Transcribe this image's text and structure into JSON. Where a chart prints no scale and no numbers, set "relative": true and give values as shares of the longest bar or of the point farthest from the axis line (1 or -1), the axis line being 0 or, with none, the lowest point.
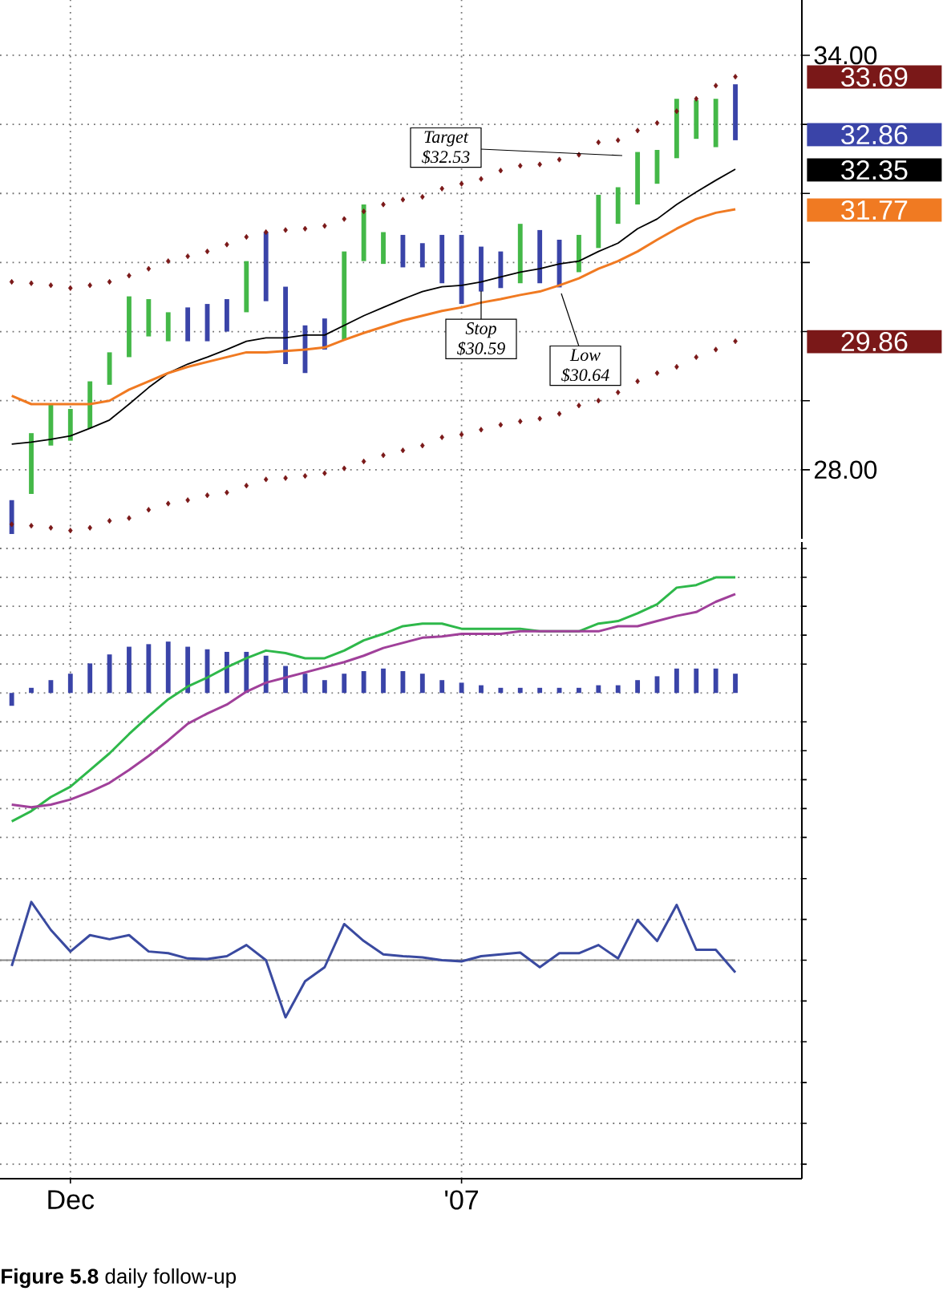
{
  "chart_data": [
    {
      "type": "bar",
      "categories": [
        null,
        null,
        null,
        null,
        null,
        null,
        null,
        null,
        null,
        null,
        null,
        null,
        null,
        null,
        null,
        null,
        null,
        null,
        null,
        null,
        null,
        null,
        null,
        null,
        null,
        null,
        null,
        null,
        null,
        null,
        null,
        null,
        null,
        null,
        null,
        null,
        null,
        null
      ],
      "ylim": [
        27.0,
        34.8
      ],
      "yticks": [
        {
          "value": 28,
          "label": "28.00"
        },
        {
          "value": 29,
          "label": null
        },
        {
          "value": 30,
          "label": null
        },
        {
          "value": 31,
          "label": null
        },
        {
          "value": 32,
          "label": null
        },
        {
          "value": 33,
          "label": null
        },
        {
          "value": 34,
          "label": "34.00"
        }
      ],
      "grid": true,
      "tick_labels": "y",
      "series": [
        {
          "type": "bar",
          "base": [
            27.07,
            27.65,
            28.35,
            28.42,
            28.6,
            29.23,
            29.63,
            29.93,
            29.86,
            29.86,
            29.86,
            30.0,
            30.28,
            30.44,
            29.53,
            29.4,
            29.74,
            29.88,
            31.02,
            30.98,
            30.93,
            30.93,
            30.7,
            30.4,
            30.58,
            30.63,
            30.7,
            30.7,
            30.64,
            30.86,
            31.21,
            31.56,
            31.84,
            32.14,
            32.51,
            32.79,
            32.67,
            32.77
          ],
          "values": [
            0.49,
            0.88,
            0.6,
            0.46,
            0.68,
            0.47,
            0.88,
            0.54,
            0.42,
            0.49,
            0.54,
            0.47,
            0.74,
            1.0,
            1.12,
            0.69,
            0.45,
            1.28,
            0.82,
            0.46,
            0.47,
            0.35,
            0.7,
            1.0,
            0.65,
            0.53,
            0.86,
            0.77,
            0.69,
            0.54,
            0.77,
            0.53,
            0.76,
            0.49,
            0.86,
            0.56,
            0.7,
            0.81
          ],
          "colors": [
            "#3a44a8",
            "#44b848",
            "#44b848",
            "#44b848",
            "#44b848",
            "#44b848",
            "#44b848",
            "#44b848",
            "#44b848",
            "#3a44a8",
            "#3a44a8",
            "#3a44a8",
            "#44b848",
            "#3a44a8",
            "#3a44a8",
            "#3a44a8",
            "#3a44a8",
            "#44b848",
            "#44b848",
            "#44b848",
            "#3a44a8",
            "#3a44a8",
            "#3a44a8",
            "#3a44a8",
            "#3a44a8",
            "#3a44a8",
            "#44b848",
            "#3a44a8",
            "#3a44a8",
            "#44b848",
            "#44b848",
            "#44b848",
            "#44b848",
            "#44b848",
            "#44b848",
            "#44b848",
            "#44b848",
            "#3a44a8"
          ]
        },
        {
          "type": "line",
          "color": "#000000",
          "values": [
            28.37,
            28.4,
            28.44,
            28.49,
            28.6,
            28.72,
            28.95,
            29.19,
            29.4,
            29.53,
            29.63,
            29.74,
            29.86,
            29.91,
            29.91,
            29.95,
            29.95,
            30.09,
            30.23,
            30.35,
            30.47,
            30.58,
            30.65,
            30.67,
            30.72,
            30.79,
            30.86,
            30.91,
            30.98,
            31.02,
            31.16,
            31.28,
            31.49,
            31.63,
            31.84,
            32.02,
            32.19,
            32.35
          ]
        },
        {
          "type": "line",
          "color": "#f07a22",
          "values": [
            29.07,
            28.95,
            28.95,
            28.95,
            28.95,
            29.0,
            29.16,
            29.28,
            29.4,
            29.49,
            29.56,
            29.63,
            29.7,
            29.7,
            29.72,
            29.74,
            29.77,
            29.88,
            29.98,
            30.07,
            30.16,
            30.23,
            30.3,
            30.35,
            30.42,
            30.47,
            30.53,
            30.58,
            30.67,
            30.77,
            30.91,
            31.02,
            31.16,
            31.33,
            31.49,
            31.63,
            31.72,
            31.77
          ]
        },
        {
          "type": "scatter",
          "marker": "diamond",
          "color": "#7a1818",
          "values": [
            30.72,
            30.7,
            30.67,
            30.63,
            30.67,
            30.72,
            30.81,
            30.91,
            31.02,
            31.09,
            31.16,
            31.26,
            31.37,
            31.44,
            31.47,
            31.49,
            31.53,
            31.63,
            31.74,
            31.84,
            31.91,
            31.95,
            32.07,
            32.14,
            32.21,
            32.33,
            32.4,
            32.42,
            32.49,
            32.56,
            32.74,
            32.77,
            32.91,
            33.02,
            33.19,
            33.37,
            33.56,
            33.69
          ]
        },
        {
          "type": "scatter",
          "marker": "diamond",
          "color": "#7a1818",
          "values": [
            27.21,
            27.19,
            27.16,
            27.12,
            27.16,
            27.26,
            27.3,
            27.42,
            27.51,
            27.56,
            27.63,
            27.67,
            27.77,
            27.86,
            27.88,
            27.91,
            27.95,
            28.02,
            28.12,
            28.21,
            28.28,
            28.35,
            28.47,
            28.51,
            28.58,
            28.65,
            28.7,
            28.74,
            28.81,
            28.93,
            29.0,
            29.12,
            29.28,
            29.4,
            29.49,
            29.63,
            29.74,
            29.86
          ]
        }
      ],
      "annotations": [
        "Target $32.53",
        {
          "text": "Stop $30.59",
          "y": 30.59
        },
        "Low $30.64",
        "32.86",
        "33.69",
        "32.35",
        "31.77",
        "29.86"
      ]
    },
    {
      "type": "line",
      "relative": true,
      "categories": [
        null,
        null,
        null,
        null,
        null,
        null,
        null,
        null,
        null,
        null,
        null,
        null,
        null,
        null,
        null,
        null,
        null,
        null,
        null,
        null,
        null,
        null,
        null,
        null,
        null,
        null,
        null,
        null,
        null,
        null,
        null,
        null,
        null,
        null,
        null,
        null,
        null,
        null
      ],
      "grid": true,
      "tick_labels": false,
      "series": [
        {
          "type": "bar",
          "color": "#3a44a8",
          "values": [
            -0.1,
            0.04,
            0.1,
            0.15,
            0.23,
            0.3,
            0.36,
            0.38,
            0.4,
            0.36,
            0.34,
            0.32,
            0.32,
            0.29,
            0.21,
            0.15,
            0.1,
            0.15,
            0.17,
            0.19,
            0.17,
            0.15,
            0.1,
            0.08,
            0.06,
            0.04,
            0.04,
            0.04,
            0.04,
            0.04,
            0.06,
            0.06,
            0.1,
            0.13,
            0.19,
            0.19,
            0.19,
            0.15
          ]
        },
        {
          "color": "#2eb84a",
          "values": [
            -1.0,
            -0.92,
            -0.81,
            -0.73,
            -0.6,
            -0.47,
            -0.32,
            -0.18,
            -0.05,
            0.05,
            0.12,
            0.2,
            0.27,
            0.33,
            0.31,
            0.27,
            0.27,
            0.33,
            0.41,
            0.46,
            0.52,
            0.54,
            0.54,
            0.5,
            0.5,
            0.5,
            0.5,
            0.48,
            0.48,
            0.48,
            0.54,
            0.56,
            0.62,
            0.69,
            0.82,
            0.84,
            0.9,
            0.9
          ]
        },
        {
          "color": "#a0409a",
          "values": [
            -0.87,
            -0.89,
            -0.87,
            -0.83,
            -0.77,
            -0.7,
            -0.6,
            -0.49,
            -0.37,
            -0.24,
            -0.16,
            -0.09,
            0.01,
            0.08,
            0.12,
            0.16,
            0.2,
            0.24,
            0.29,
            0.35,
            0.39,
            0.43,
            0.44,
            0.46,
            0.46,
            0.46,
            0.48,
            0.48,
            0.48,
            0.48,
            0.48,
            0.52,
            0.52,
            0.56,
            0.6,
            0.63,
            0.71,
            0.77
          ]
        }
      ],
      "ref_lines": [
        {
          "axis": "y",
          "value": 0,
          "color": "#8c8c8c",
          "line_style": "dotted"
        }
      ]
    },
    {
      "type": "line",
      "relative": true,
      "categories": [
        null,
        null,
        null,
        "Dec",
        null,
        null,
        null,
        null,
        null,
        null,
        null,
        null,
        null,
        null,
        null,
        null,
        null,
        null,
        null,
        null,
        null,
        null,
        null,
        "'07",
        null,
        null,
        null,
        null,
        null,
        null,
        null,
        null,
        null,
        null,
        null,
        null,
        null,
        null
      ],
      "grid": true,
      "tick_labels": "x",
      "series": [
        {
          "color": "#3a4aa0",
          "values": [
            -0.1,
            1.0,
            0.52,
            0.15,
            0.43,
            0.36,
            0.43,
            0.15,
            0.12,
            0.03,
            0.02,
            0.07,
            0.26,
            0.0,
            -0.98,
            -0.36,
            -0.12,
            0.62,
            0.33,
            0.1,
            0.07,
            0.05,
            0.0,
            -0.02,
            0.07,
            0.1,
            0.13,
            -0.12,
            0.12,
            0.12,
            0.26,
            0.03,
            0.69,
            0.33,
            0.95,
            0.18,
            0.18,
            -0.21
          ]
        }
      ],
      "ref_lines": [
        {
          "axis": "y",
          "value": 0,
          "color": "#888888"
        }
      ],
      "annotations": [
        "**Figure 5.8** daily follow-up"
      ]
    }
  ]
}
